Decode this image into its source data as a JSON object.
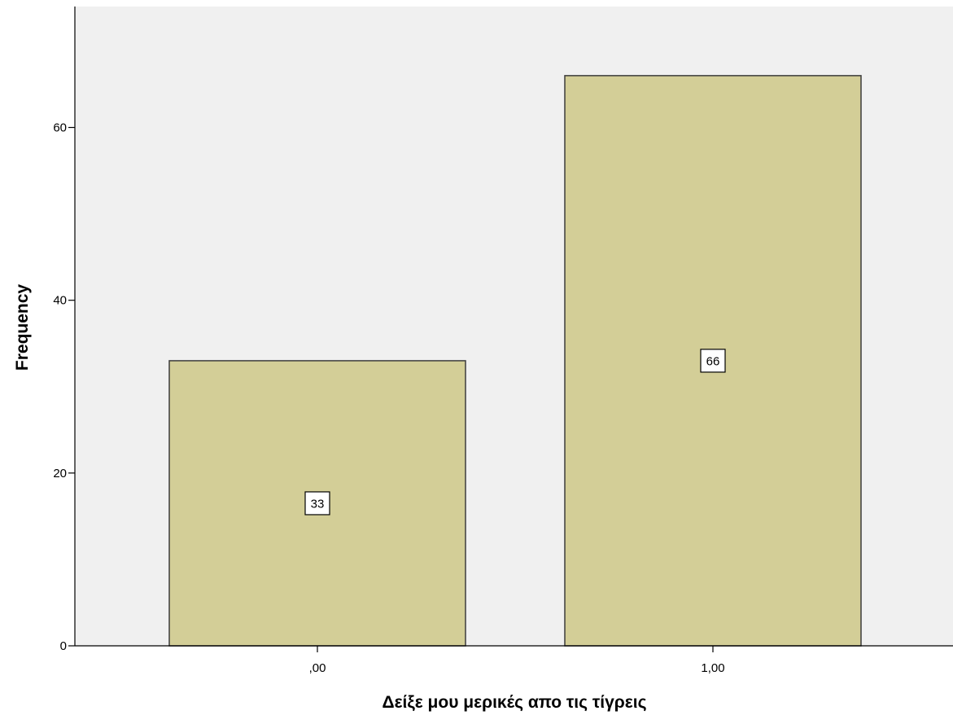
{
  "chart_data": {
    "type": "bar",
    "title": "",
    "xlabel": "Δείξε μου μερικές απο τις τίγρεις",
    "ylabel": "Frequency",
    "categories": [
      ",00",
      "1,00"
    ],
    "values": [
      33,
      66
    ],
    "data_labels": [
      "33",
      "66"
    ],
    "yticks": [
      0,
      20,
      40,
      60
    ],
    "ytick_labels": [
      "0",
      "20",
      "40",
      "60"
    ],
    "ylim": [
      0,
      74
    ],
    "grid": false,
    "legend": "none",
    "colors": {
      "plot_background": "#f0f0f0",
      "bar_fill": "#d3ce97",
      "bar_stroke": "#3c3c3c",
      "axis": "#000000"
    }
  }
}
